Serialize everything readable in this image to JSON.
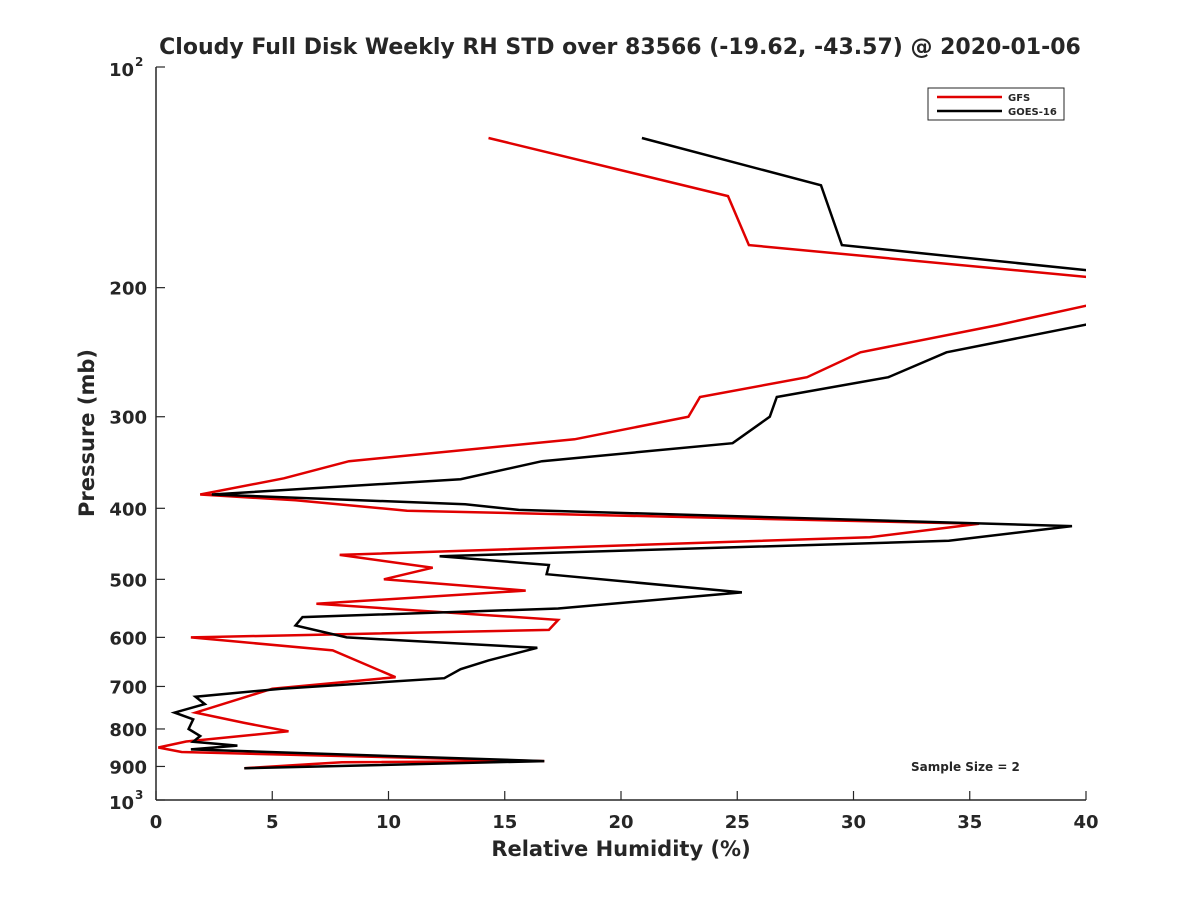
{
  "chart_data": {
    "type": "line",
    "title": "Cloudy Full Disk Weekly RH STD over 83566 (-19.62, -43.57) @ 2020-01-06",
    "xlabel": "Relative Humidity (%)",
    "ylabel": "Pressure (mb)",
    "xlim": [
      0,
      40
    ],
    "ylim": [
      100,
      1000
    ],
    "y_scale": "log",
    "y_reversed": true,
    "grid": false,
    "legend_position": "top-right",
    "annotation": "Sample Size = 2",
    "x_ticks": [
      "0",
      "5",
      "10",
      "15",
      "20",
      "25",
      "30",
      "35",
      "40"
    ],
    "y_ticks": [
      {
        "value": 100,
        "base": "10",
        "exp": "2"
      },
      {
        "value": 200,
        "label": "200"
      },
      {
        "value": 300,
        "label": "300"
      },
      {
        "value": 400,
        "label": "400"
      },
      {
        "value": 500,
        "label": "500"
      },
      {
        "value": 600,
        "label": "600"
      },
      {
        "value": 700,
        "label": "700"
      },
      {
        "value": 800,
        "label": "800"
      },
      {
        "value": 900,
        "label": "900"
      },
      {
        "value": 1000,
        "base": "10",
        "exp": "3"
      }
    ],
    "series": [
      {
        "name": "GFS",
        "color": "#e00000",
        "points": [
          [
            14.3,
            125
          ],
          [
            24.6,
            150
          ],
          [
            25.5,
            175
          ],
          [
            40.5,
            194
          ],
          [
            40.5,
            210
          ],
          [
            36.2,
            225
          ],
          [
            30.3,
            245
          ],
          [
            28.0,
            265
          ],
          [
            23.4,
            282
          ],
          [
            22.9,
            300
          ],
          [
            18.0,
            322
          ],
          [
            8.3,
            345
          ],
          [
            5.5,
            364
          ],
          [
            1.9,
            383
          ],
          [
            6.0,
            390
          ],
          [
            10.8,
            403
          ],
          [
            35.4,
            420
          ],
          [
            30.7,
            438
          ],
          [
            7.9,
            463
          ],
          [
            11.9,
            482
          ],
          [
            9.8,
            500
          ],
          [
            15.9,
            518
          ],
          [
            6.9,
            540
          ],
          [
            17.3,
            568
          ],
          [
            16.9,
            586
          ],
          [
            1.5,
            600
          ],
          [
            7.6,
            625
          ],
          [
            10.3,
            680
          ],
          [
            5.0,
            705
          ],
          [
            1.7,
            760
          ],
          [
            3.8,
            785
          ],
          [
            5.7,
            806
          ],
          [
            1.3,
            832
          ],
          [
            0.1,
            848
          ],
          [
            1.1,
            860
          ],
          [
            16.7,
            885
          ],
          [
            8.0,
            888
          ],
          [
            3.8,
            905
          ]
        ]
      },
      {
        "name": "GOES-16",
        "color": "#000000",
        "points": [
          [
            20.9,
            125
          ],
          [
            28.6,
            145
          ],
          [
            29.5,
            175
          ],
          [
            40.5,
            190
          ],
          [
            40.5,
            223
          ],
          [
            34.0,
            245
          ],
          [
            31.5,
            265
          ],
          [
            26.7,
            282
          ],
          [
            26.4,
            300
          ],
          [
            24.8,
            326
          ],
          [
            16.6,
            345
          ],
          [
            13.1,
            365
          ],
          [
            2.4,
            383
          ],
          [
            13.3,
            395
          ],
          [
            15.6,
            402
          ],
          [
            39.4,
            423
          ],
          [
            34.1,
            443
          ],
          [
            12.2,
            465
          ],
          [
            16.9,
            478
          ],
          [
            16.8,
            492
          ],
          [
            25.2,
            521
          ],
          [
            17.3,
            548
          ],
          [
            6.3,
            563
          ],
          [
            6.0,
            578
          ],
          [
            8.2,
            600
          ],
          [
            16.4,
            620
          ],
          [
            14.3,
            645
          ],
          [
            13.1,
            663
          ],
          [
            12.4,
            682
          ],
          [
            5.4,
            705
          ],
          [
            1.7,
            723
          ],
          [
            2.1,
            740
          ],
          [
            0.8,
            760
          ],
          [
            1.6,
            776
          ],
          [
            1.4,
            800
          ],
          [
            1.9,
            818
          ],
          [
            1.6,
            833
          ],
          [
            3.5,
            843
          ],
          [
            1.5,
            853
          ],
          [
            16.7,
            885
          ],
          [
            3.8,
            905
          ]
        ]
      }
    ]
  }
}
